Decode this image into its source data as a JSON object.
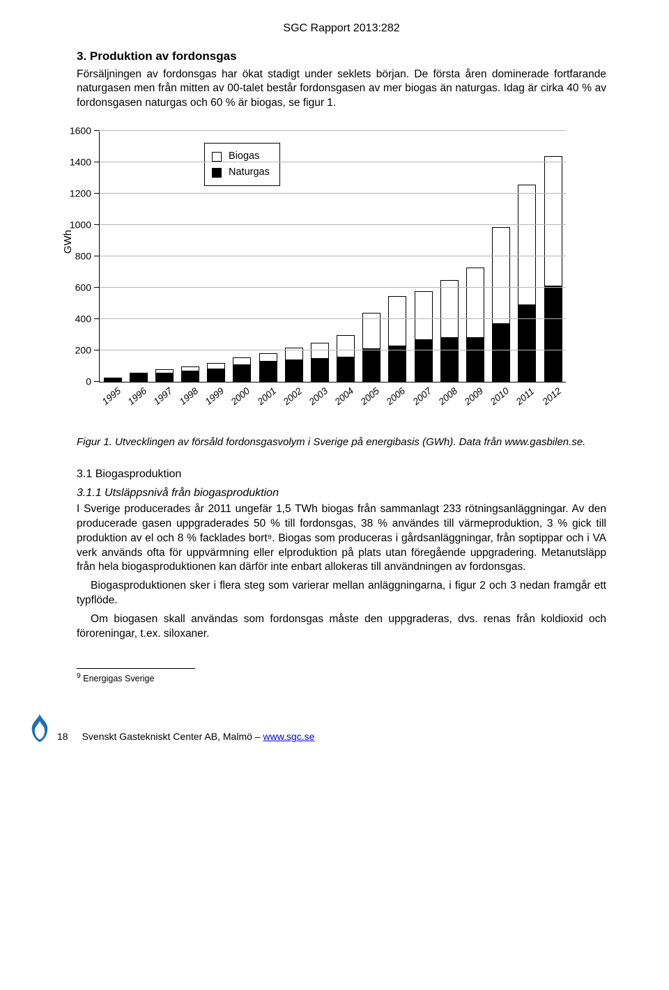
{
  "report_header": "SGC Rapport 2013:282",
  "section": {
    "number_title": "3. Produktion av fordonsgas",
    "intro": "Försäljningen av fordonsgas har ökat stadigt under seklets början. De första åren dominerade fortfarande naturgasen men från mitten av 00-talet består fordonsgasen av mer biogas än naturgas. Idag är cirka 40 % av fordonsgasen naturgas och 60 % är biogas, se figur 1."
  },
  "chart": {
    "type": "stacked-bar",
    "axis_title": "GWh",
    "y_max": 1600,
    "y_step": 200,
    "y_ticks": [
      0,
      200,
      400,
      600,
      800,
      1000,
      1200,
      1400,
      1600
    ],
    "legend": {
      "biogas": "Biogas",
      "naturgas": "Naturgas"
    },
    "colors": {
      "biogas_fill": "#ffffff",
      "biogas_border": "#000000",
      "naturgas_fill": "#000000",
      "background": "#ffffff",
      "grid": "#b5b5b5"
    },
    "bar_width_ratio": 0.7,
    "series": [
      {
        "year": "1995",
        "naturgas": 18,
        "biogas": 0
      },
      {
        "year": "1996",
        "naturgas": 50,
        "biogas": 10
      },
      {
        "year": "1997",
        "naturgas": 55,
        "biogas": 25
      },
      {
        "year": "1998",
        "naturgas": 70,
        "biogas": 30
      },
      {
        "year": "1999",
        "naturgas": 80,
        "biogas": 40
      },
      {
        "year": "2000",
        "naturgas": 110,
        "biogas": 45
      },
      {
        "year": "2001",
        "naturgas": 130,
        "biogas": 55
      },
      {
        "year": "2002",
        "naturgas": 140,
        "biogas": 80
      },
      {
        "year": "2003",
        "naturgas": 150,
        "biogas": 100
      },
      {
        "year": "2004",
        "naturgas": 155,
        "biogas": 145
      },
      {
        "year": "2005",
        "naturgas": 210,
        "biogas": 230
      },
      {
        "year": "2006",
        "naturgas": 230,
        "biogas": 320
      },
      {
        "year": "2007",
        "naturgas": 270,
        "biogas": 310
      },
      {
        "year": "2008",
        "naturgas": 280,
        "biogas": 370
      },
      {
        "year": "2009",
        "naturgas": 280,
        "biogas": 450
      },
      {
        "year": "2010",
        "naturgas": 370,
        "biogas": 620
      },
      {
        "year": "2011",
        "naturgas": 490,
        "biogas": 770
      },
      {
        "year": "2012",
        "naturgas": 610,
        "biogas": 830
      }
    ]
  },
  "caption": "Figur 1. Utvecklingen av försåld fordonsgasvolym i Sverige på energibasis (GWh). Data från www.gasbilen.se.",
  "subsection": {
    "title": "3.1    Biogasproduktion",
    "subsub_title": "3.1.1  Utsläppsnivå från biogasproduktion",
    "p1": "I Sverige producerades år 2011 ungefär 1,5 TWh biogas från sammanlagt 233 rötningsanläggningar. Av den producerade gasen uppgraderades 50 % till fordonsgas, 38 % användes till värmeproduktion, 3 % gick till produktion av el och 8 % facklades bort⁹. Biogas som produceras i gårdsanläggningar, från soptippar och i VA verk används ofta för uppvärmning eller elproduktion på plats utan föregående uppgradering. Metanutsläpp från hela biogasproduktionen kan därför inte enbart allokeras till användningen av fordonsgas.",
    "p2": "Biogasproduktionen sker i flera steg som varierar mellan anläggningarna, i figur 2 och 3 nedan framgår ett typflöde.",
    "p3": "Om biogasen skall användas som fordonsgas måste den uppgraderas, dvs. renas från koldioxid och föroreningar, t.ex. siloxaner."
  },
  "footnote": {
    "marker": "9",
    "text": " Energigas Sverige"
  },
  "footer": {
    "page": "18",
    "org": "Svenskt Gastekniskt Center AB, Malmö – ",
    "link": "www.sgc.se"
  }
}
